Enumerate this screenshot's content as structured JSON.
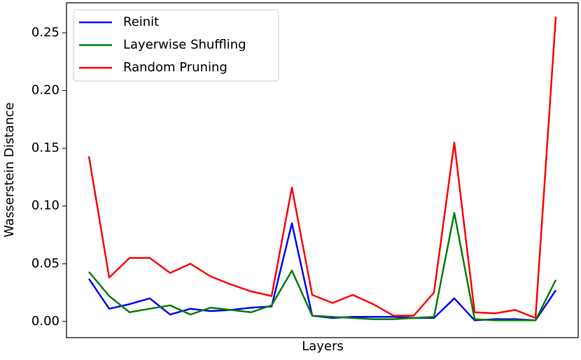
{
  "chart_data": {
    "type": "line",
    "x_label": "Layers",
    "y_label": "Wasserstein Distance",
    "categories": [
      null,
      null,
      null,
      null,
      null,
      null,
      null,
      null,
      null,
      null,
      null,
      null,
      null,
      null,
      null,
      null,
      null,
      null,
      null,
      null,
      null,
      null,
      null,
      null
    ],
    "series": [
      {
        "name": "Reinit",
        "color": "#0000ff",
        "values": [
          0.037,
          0.011,
          0.015,
          0.02,
          0.006,
          0.011,
          0.009,
          0.01,
          0.012,
          0.013,
          0.085,
          0.005,
          0.003,
          0.004,
          0.004,
          0.004,
          0.003,
          0.003,
          0.02,
          0.001,
          0.002,
          0.002,
          0.001,
          0.027
        ]
      },
      {
        "name": "Layerwise Shuffling",
        "color": "#008000",
        "values": [
          0.043,
          0.022,
          0.008,
          0.011,
          0.014,
          0.006,
          0.012,
          0.01,
          0.008,
          0.014,
          0.044,
          0.005,
          0.004,
          0.003,
          0.002,
          0.002,
          0.003,
          0.004,
          0.094,
          0.002,
          0.001,
          0.001,
          0.001,
          0.036
        ]
      },
      {
        "name": "Random Pruning",
        "color": "#ff0000",
        "values": [
          0.143,
          0.038,
          0.055,
          0.055,
          0.042,
          0.05,
          0.039,
          0.032,
          0.026,
          0.022,
          0.116,
          0.023,
          0.016,
          0.023,
          0.015,
          0.005,
          0.005,
          0.025,
          0.155,
          0.008,
          0.007,
          0.01,
          0.003,
          0.264
        ]
      }
    ],
    "ylim": [
      -0.014,
      0.276
    ],
    "yticks": [
      {
        "value": 0,
        "label": "0.00"
      },
      {
        "value": 0.05,
        "label": "0.05"
      },
      {
        "value": 0.1,
        "label": "0.10"
      },
      {
        "value": 0.15,
        "label": "0.15"
      },
      {
        "value": 0.2,
        "label": "0.20"
      },
      {
        "value": 0.25,
        "label": "0.25"
      }
    ],
    "legend": "upper left"
  }
}
